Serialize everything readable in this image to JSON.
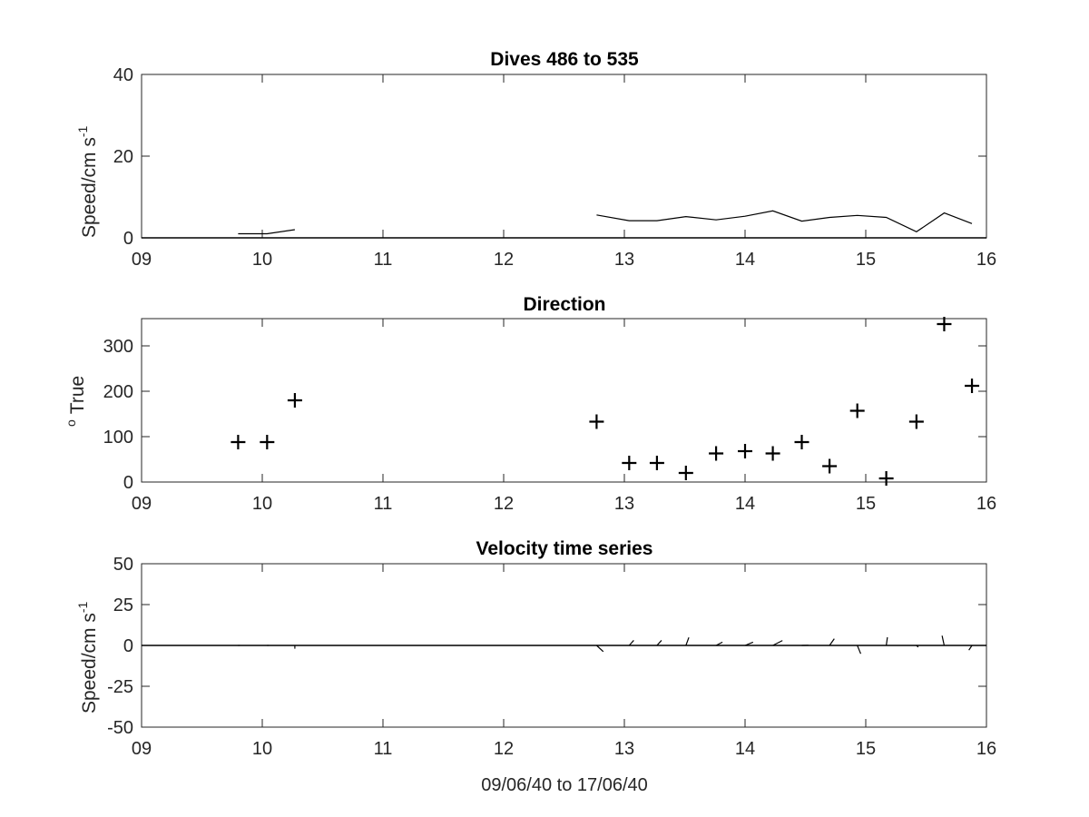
{
  "chart_data": [
    {
      "type": "line",
      "title": "Dives 486 to 535",
      "ylabel": "Speed/cm s",
      "ylabel_sup": "-1",
      "xlim": [
        9,
        16
      ],
      "ylim": [
        0,
        40
      ],
      "xticks": [
        9,
        10,
        11,
        12,
        13,
        14,
        15,
        16
      ],
      "xtick_labels": [
        "09",
        "10",
        "11",
        "12",
        "13",
        "14",
        "15",
        "16"
      ],
      "yticks": [
        0,
        20,
        40
      ],
      "ytick_labels": [
        "0",
        "20",
        "40"
      ],
      "segments": [
        {
          "x": [
            9.8,
            10.04,
            10.27
          ],
          "y": [
            1,
            1,
            2
          ]
        },
        {
          "x": [
            12.77,
            13.04,
            13.27,
            13.51,
            13.76,
            14.0,
            14.23,
            14.47,
            14.7,
            14.93,
            15.17,
            15.42,
            15.65,
            15.88
          ],
          "y": [
            5.6,
            4.2,
            4.2,
            5.2,
            4.4,
            5.3,
            6.6,
            4.1,
            5.0,
            5.5,
            5.0,
            1.5,
            6.1,
            3.5
          ]
        }
      ],
      "zero_line": 0
    },
    {
      "type": "scatter",
      "title": "Direction",
      "ylabel": "True",
      "ylabel_sup": "o",
      "marker": "+",
      "xlim": [
        9,
        16
      ],
      "ylim": [
        0,
        360
      ],
      "xticks": [
        9,
        10,
        11,
        12,
        13,
        14,
        15,
        16
      ],
      "xtick_labels": [
        "09",
        "10",
        "11",
        "12",
        "13",
        "14",
        "15",
        "16"
      ],
      "yticks": [
        0,
        100,
        200,
        300
      ],
      "ytick_labels": [
        "0",
        "100",
        "200",
        "300"
      ],
      "x": [
        9.8,
        10.04,
        10.27,
        12.77,
        13.04,
        13.27,
        13.51,
        13.76,
        14.0,
        14.23,
        14.47,
        14.7,
        14.93,
        15.17,
        15.42,
        15.65,
        15.88
      ],
      "y": [
        88,
        88,
        180,
        133,
        42,
        42,
        20,
        63,
        68,
        63,
        88,
        35,
        157,
        8,
        133,
        348,
        212
      ]
    },
    {
      "type": "line",
      "title": "Velocity time series",
      "ylabel": "Speed/cm s",
      "ylabel_sup": "-1",
      "xlabel": "09/06/40 to 17/06/40",
      "xlim": [
        9,
        16
      ],
      "ylim": [
        -50,
        50
      ],
      "xticks": [
        9,
        10,
        11,
        12,
        13,
        14,
        15,
        16
      ],
      "xtick_labels": [
        "09",
        "10",
        "11",
        "12",
        "13",
        "14",
        "15",
        "16"
      ],
      "yticks": [
        -50,
        -25,
        0,
        25,
        50
      ],
      "ytick_labels": [
        "-50",
        "-25",
        "0",
        "25",
        "50"
      ],
      "zero_line": 0,
      "sticks": [
        {
          "x": 9.8,
          "u": 1.0,
          "v": 0.0
        },
        {
          "x": 10.04,
          "u": 1.0,
          "v": 0.0
        },
        {
          "x": 10.27,
          "u": 0.0,
          "v": -2.0
        },
        {
          "x": 12.77,
          "u": 4.1,
          "v": -3.8
        },
        {
          "x": 13.04,
          "u": 2.8,
          "v": 3.1
        },
        {
          "x": 13.27,
          "u": 2.8,
          "v": 3.1
        },
        {
          "x": 13.51,
          "u": 1.8,
          "v": 4.9
        },
        {
          "x": 13.76,
          "u": 3.9,
          "v": 2.0
        },
        {
          "x": 14.0,
          "u": 4.9,
          "v": 2.0
        },
        {
          "x": 14.23,
          "u": 5.9,
          "v": 3.0
        },
        {
          "x": 14.47,
          "u": 4.1,
          "v": 0.1
        },
        {
          "x": 14.7,
          "u": 2.9,
          "v": 4.1
        },
        {
          "x": 14.93,
          "u": 2.1,
          "v": -5.1
        },
        {
          "x": 15.17,
          "u": 0.7,
          "v": 5.0
        },
        {
          "x": 15.42,
          "u": 1.1,
          "v": -1.0
        },
        {
          "x": 15.65,
          "u": -1.3,
          "v": 6.0
        },
        {
          "x": 15.88,
          "u": -1.9,
          "v": -2.9
        }
      ]
    }
  ]
}
